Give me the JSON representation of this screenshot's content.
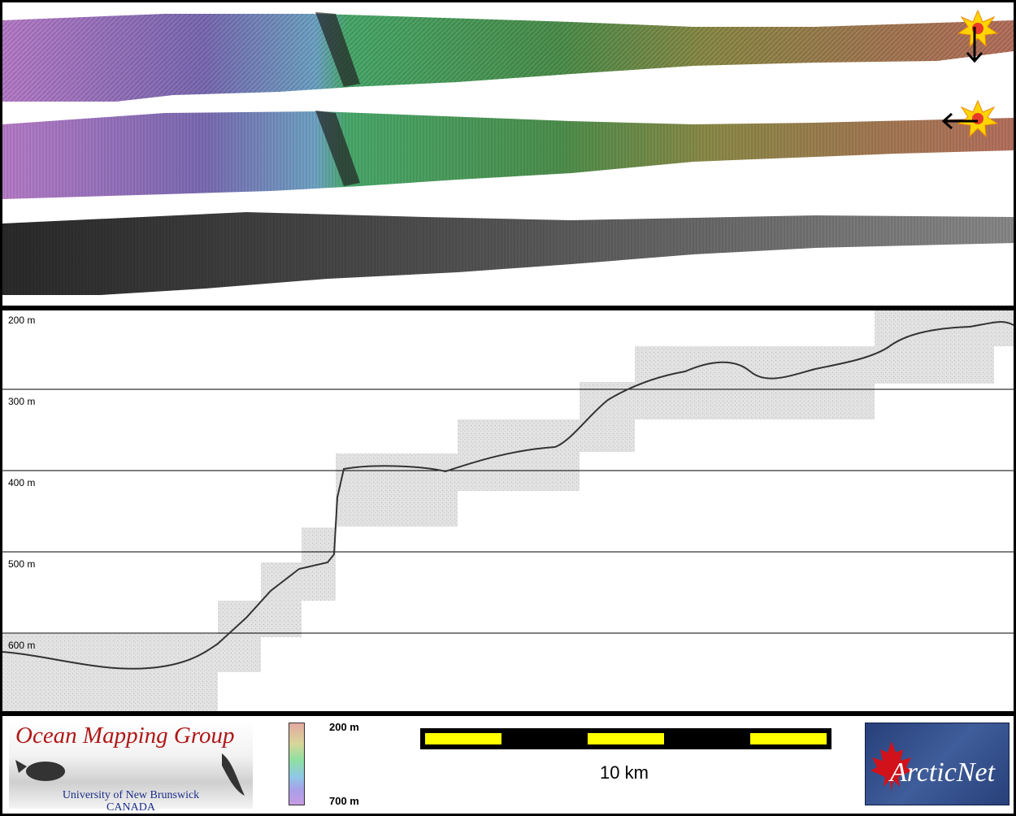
{
  "profile": {
    "depth_labels": [
      "200 m",
      "300 m",
      "400 m",
      "500 m",
      "600 m"
    ]
  },
  "footer": {
    "logo": {
      "title": "Ocean Mapping Group",
      "university": "University of New Brunswick",
      "country": "CANADA"
    },
    "colorbar": {
      "top_label": "200 m",
      "bottom_label": "700 m"
    },
    "scale_bar": {
      "label": "10 km"
    },
    "partner_logo": {
      "text": "ArcticNet"
    }
  },
  "colors": {
    "frame": "#000000",
    "scale_yellow": "#ffff00",
    "omg_red": "#b01818",
    "omg_blue": "#1a2d8a"
  }
}
